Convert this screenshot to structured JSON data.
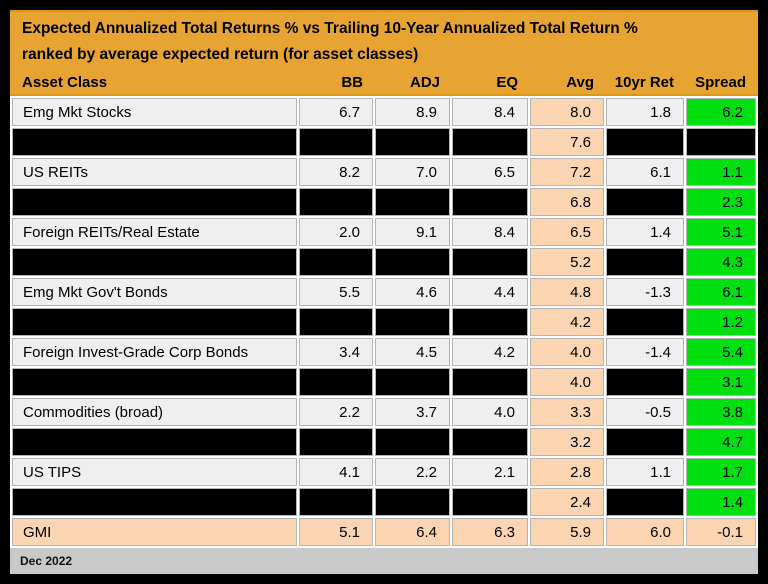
{
  "title": "Expected Annualized Total Returns % vs Trailing 10-Year Annualized Total Return %",
  "subtitle": "ranked by average expected return (for asset classes)",
  "footer": {
    "date_label": "Dec 2022"
  },
  "colors": {
    "header_gold": "#E8A433",
    "header_gold_edge": "#DD9714",
    "row_light_gray": "#EFEFEF",
    "redacted_black": "#000000",
    "avg_peach": "#FBD5B1",
    "spread_green": "#00DF10",
    "footer_gray": "#C9C9C9",
    "gridline": "#B4B4B4"
  },
  "table": {
    "columns": [
      "Asset Class",
      "BB",
      "ADJ",
      "EQ",
      "Avg",
      "10yr Ret",
      "Spread"
    ],
    "rows": [
      {
        "variant": "data",
        "label": "Emg Mkt Stocks",
        "bb": "6.7",
        "adj": "8.9",
        "eq": "8.4",
        "avg": "8.0",
        "ret10": "1.8",
        "spread": "6.2"
      },
      {
        "variant": "redacted",
        "label": "",
        "bb": "",
        "adj": "",
        "eq": "",
        "avg": "7.6",
        "ret10": "",
        "spread": ""
      },
      {
        "variant": "data",
        "label": "US REITs",
        "bb": "8.2",
        "adj": "7.0",
        "eq": "6.5",
        "avg": "7.2",
        "ret10": "6.1",
        "spread": "1.1"
      },
      {
        "variant": "redacted",
        "label": "",
        "bb": "",
        "adj": "",
        "eq": "",
        "avg": "6.8",
        "ret10": "",
        "spread": "2.3"
      },
      {
        "variant": "data",
        "label": "Foreign REITs/Real Estate",
        "bb": "2.0",
        "adj": "9.1",
        "eq": "8.4",
        "avg": "6.5",
        "ret10": "1.4",
        "spread": "5.1"
      },
      {
        "variant": "redacted",
        "label": "",
        "bb": "",
        "adj": "",
        "eq": "",
        "avg": "5.2",
        "ret10": "",
        "spread": "4.3"
      },
      {
        "variant": "data",
        "label": "Emg Mkt Gov't Bonds",
        "bb": "5.5",
        "adj": "4.6",
        "eq": "4.4",
        "avg": "4.8",
        "ret10": "-1.3",
        "spread": "6.1"
      },
      {
        "variant": "redacted",
        "label": "",
        "bb": "",
        "adj": "",
        "eq": "",
        "avg": "4.2",
        "ret10": "",
        "spread": "1.2"
      },
      {
        "variant": "data",
        "label": "Foreign Invest-Grade Corp Bonds",
        "bb": "3.4",
        "adj": "4.5",
        "eq": "4.2",
        "avg": "4.0",
        "ret10": "-1.4",
        "spread": "5.4"
      },
      {
        "variant": "redacted",
        "label": "",
        "bb": "",
        "adj": "",
        "eq": "",
        "avg": "4.0",
        "ret10": "",
        "spread": "3.1"
      },
      {
        "variant": "data",
        "label": "Commodities (broad)",
        "bb": "2.2",
        "adj": "3.7",
        "eq": "4.0",
        "avg": "3.3",
        "ret10": "-0.5",
        "spread": "3.8"
      },
      {
        "variant": "redacted",
        "label": "",
        "bb": "",
        "adj": "",
        "eq": "",
        "avg": "3.2",
        "ret10": "",
        "spread": "4.7"
      },
      {
        "variant": "data",
        "label": "US TIPS",
        "bb": "4.1",
        "adj": "2.2",
        "eq": "2.1",
        "avg": "2.8",
        "ret10": "1.1",
        "spread": "1.7"
      },
      {
        "variant": "redacted",
        "label": "",
        "bb": "",
        "adj": "",
        "eq": "",
        "avg": "2.4",
        "ret10": "",
        "spread": "1.4"
      },
      {
        "variant": "summary",
        "label": "GMI",
        "bb": "5.1",
        "adj": "6.4",
        "eq": "6.3",
        "avg": "5.9",
        "ret10": "6.0",
        "spread": "-0.1"
      }
    ]
  },
  "chart_data": {
    "type": "table",
    "title": "Expected Annualized Total Returns % vs Trailing 10-Year Annualized Total Return %",
    "subtitle": "ranked by average expected return (for asset classes)",
    "columns": [
      "Asset Class",
      "BB",
      "ADJ",
      "EQ",
      "Avg",
      "10yr Ret",
      "Spread"
    ],
    "rows": [
      [
        "Emg Mkt Stocks",
        6.7,
        8.9,
        8.4,
        8.0,
        1.8,
        6.2
      ],
      [
        null,
        null,
        null,
        null,
        7.6,
        null,
        null
      ],
      [
        "US REITs",
        8.2,
        7.0,
        6.5,
        7.2,
        6.1,
        1.1
      ],
      [
        null,
        null,
        null,
        null,
        6.8,
        null,
        2.3
      ],
      [
        "Foreign REITs/Real Estate",
        2.0,
        9.1,
        8.4,
        6.5,
        1.4,
        5.1
      ],
      [
        null,
        null,
        null,
        null,
        5.2,
        null,
        4.3
      ],
      [
        "Emg Mkt Gov't Bonds",
        5.5,
        4.6,
        4.4,
        4.8,
        -1.3,
        6.1
      ],
      [
        null,
        null,
        null,
        null,
        4.2,
        null,
        1.2
      ],
      [
        "Foreign Invest-Grade Corp Bonds",
        3.4,
        4.5,
        4.2,
        4.0,
        -1.4,
        5.4
      ],
      [
        null,
        null,
        null,
        null,
        4.0,
        null,
        3.1
      ],
      [
        "Commodities (broad)",
        2.2,
        3.7,
        4.0,
        3.3,
        -0.5,
        3.8
      ],
      [
        null,
        null,
        null,
        null,
        3.2,
        null,
        4.7
      ],
      [
        "US TIPS",
        4.1,
        2.2,
        2.1,
        2.8,
        1.1,
        1.7
      ],
      [
        null,
        null,
        null,
        null,
        2.4,
        null,
        1.4
      ],
      [
        "GMI",
        5.1,
        6.4,
        6.3,
        5.9,
        6.0,
        -0.1
      ]
    ],
    "notes": "Rows with null asset names are blacked-out/redacted rows; Avg column (peach) and Spread column (green) remain visible. Footer date: Dec 2022."
  }
}
